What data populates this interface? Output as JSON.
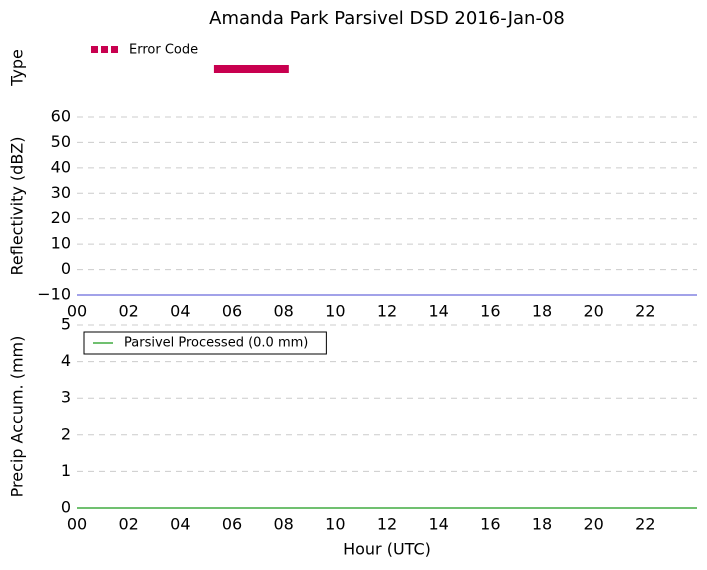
{
  "chart_data": [
    {
      "type": "timeline",
      "title": "Amanda Park Parsivel DSD 2016-Jan-08",
      "ylabel": "Type",
      "xlim": [
        0,
        24
      ],
      "legend": "upper left",
      "series": [
        {
          "name": "Error Code",
          "color": "#c8004f",
          "x": [
            5.3,
            8.2
          ]
        }
      ]
    },
    {
      "type": "line",
      "ylabel": "Reflectivity (dBZ)",
      "xlim": [
        0,
        24
      ],
      "xticks": [
        {
          "value": 0,
          "label": "00"
        },
        {
          "value": 2,
          "label": "02"
        },
        {
          "value": 4,
          "label": "04"
        },
        {
          "value": 6,
          "label": "06"
        },
        {
          "value": 8,
          "label": "08"
        },
        {
          "value": 10,
          "label": "10"
        },
        {
          "value": 12,
          "label": "12"
        },
        {
          "value": 14,
          "label": "14"
        },
        {
          "value": 16,
          "label": "16"
        },
        {
          "value": 18,
          "label": "18"
        },
        {
          "value": 20,
          "label": "20"
        },
        {
          "value": 22,
          "label": "22"
        }
      ],
      "ylim": [
        -10,
        60
      ],
      "yticks": [
        {
          "value": -10,
          "label": "−10"
        },
        0,
        10,
        20,
        30,
        40,
        50,
        60
      ],
      "grid": true,
      "series": [
        {
          "color": "#6b6bdc",
          "x": [
            0,
            24
          ],
          "values": [
            -10,
            -10
          ]
        }
      ]
    },
    {
      "type": "line",
      "ylabel": "Precip Accum. (mm)",
      "xlabel": "Hour (UTC)",
      "xlim": [
        0,
        24
      ],
      "xticks": [
        {
          "value": 0,
          "label": "00"
        },
        {
          "value": 2,
          "label": "02"
        },
        {
          "value": 4,
          "label": "04"
        },
        {
          "value": 6,
          "label": "06"
        },
        {
          "value": 8,
          "label": "08"
        },
        {
          "value": 10,
          "label": "10"
        },
        {
          "value": 12,
          "label": "12"
        },
        {
          "value": 14,
          "label": "14"
        },
        {
          "value": 16,
          "label": "16"
        },
        {
          "value": 18,
          "label": "18"
        },
        {
          "value": 20,
          "label": "20"
        },
        {
          "value": 22,
          "label": "22"
        }
      ],
      "ylim": [
        0,
        5
      ],
      "yticks": [
        0,
        1,
        2,
        3,
        4,
        5
      ],
      "grid": true,
      "legend": "upper left",
      "series": [
        {
          "name": "Parsivel Processed (0.0 mm)",
          "color": "#1a9a1a",
          "x": [
            0,
            24
          ],
          "values": [
            0,
            0
          ]
        }
      ]
    }
  ]
}
